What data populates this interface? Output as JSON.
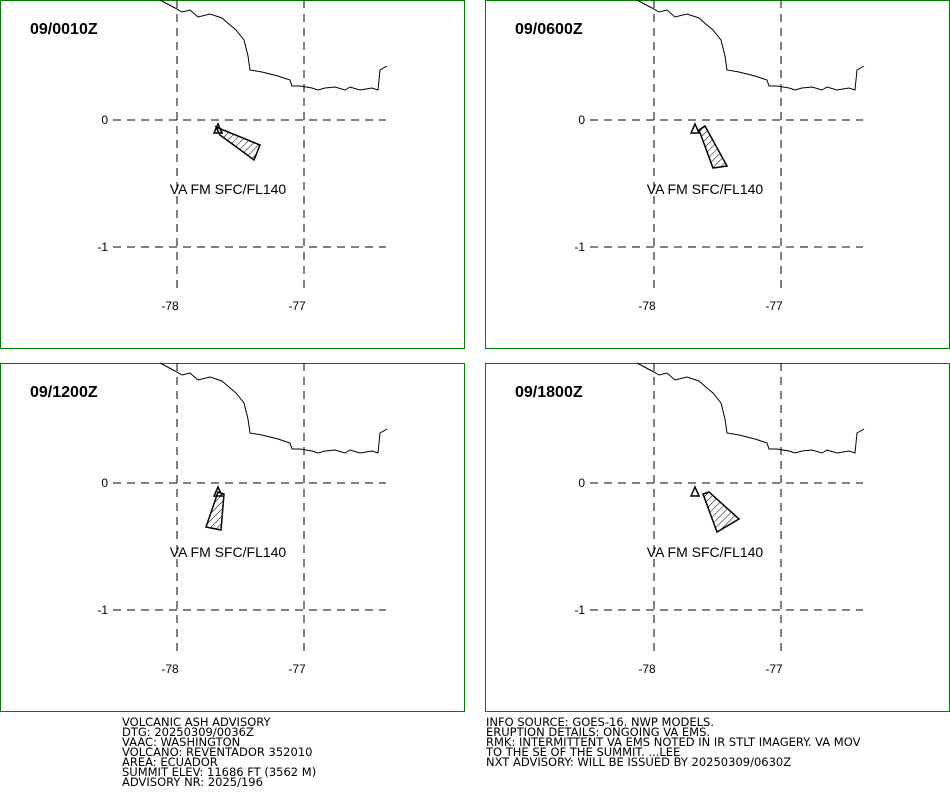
{
  "panels": [
    {
      "title": "09/0010Z",
      "label": "VA FM SFC/FL140",
      "lat_labels": [
        "0",
        "-1"
      ],
      "lon_labels": [
        "-78",
        "-77"
      ]
    },
    {
      "title": "09/0600Z",
      "label": "VA FM SFC/FL140",
      "lat_labels": [
        "0",
        "-1"
      ],
      "lon_labels": [
        "-78",
        "-77"
      ]
    },
    {
      "title": "09/1200Z",
      "label": "VA FM SFC/FL140",
      "lat_labels": [
        "0",
        "-1"
      ],
      "lon_labels": [
        "-78",
        "-77"
      ]
    },
    {
      "title": "09/1800Z",
      "label": "VA FM SFC/FL140",
      "lat_labels": [
        "0",
        "-1"
      ],
      "lon_labels": [
        "-78",
        "-77"
      ]
    }
  ],
  "footer_left": [
    "VOLCANIC ASH ADVISORY",
    "DTG: 20250309/0036Z",
    "VAAC: WASHINGTON",
    "VOLCANO: REVENTADOR 352010",
    "AREA: ECUADOR",
    "SUMMIT ELEV: 11686 FT (3562 M)",
    "ADVISORY NR: 2025/196"
  ],
  "footer_right": [
    "INFO SOURCE: GOES-16. NWP MODELS.",
    "ERUPTION DETAILS: ONGOING VA EMS.",
    "RMK: INTERMITTENT VA EMS NOTED IN IR STLT IMAGERY. VA MOV",
    "TO THE SE OF THE SUMMIT. ...LEE",
    "NXT ADVISORY: WILL BE ISSUED BY 20250309/0630Z"
  ]
}
